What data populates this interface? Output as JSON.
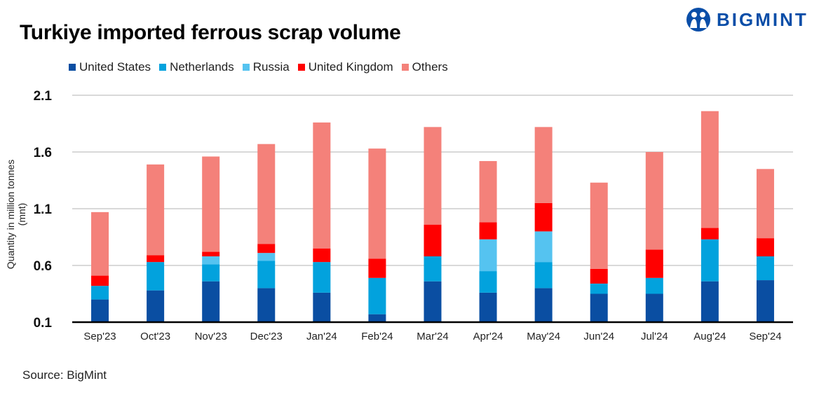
{
  "logo": {
    "text": "BIGMINT",
    "color": "#0a4ea8"
  },
  "source": "Source: BigMint",
  "chart_data": {
    "type": "bar",
    "stacked": true,
    "title": "Turkiye imported ferrous scrap volume",
    "xlabel": "",
    "ylabel": "Quantity in  million tonnes (mnt)",
    "ylim": [
      0.1,
      2.1
    ],
    "yticks": [
      "0.1",
      "0.6",
      "1.1",
      "1.6",
      "2.1"
    ],
    "grid": true,
    "legend": "top-left",
    "categories": [
      "Sep'23",
      "Oct'23",
      "Nov'23",
      "Dec'23",
      "Jan'24",
      "Feb'24",
      "Mar'24",
      "Apr'24",
      "May'24",
      "Jun'24",
      "Jul'24",
      "Aug'24",
      "Sep'24"
    ],
    "series": [
      {
        "name": "United States",
        "color": "#0a4ea2",
        "values": [
          0.3,
          0.38,
          0.46,
          0.4,
          0.36,
          0.17,
          0.46,
          0.36,
          0.4,
          0.35,
          0.35,
          0.46,
          0.47
        ]
      },
      {
        "name": "Netherlands",
        "color": "#02a2dd",
        "values": [
          0.12,
          0.25,
          0.15,
          0.24,
          0.27,
          0.32,
          0.22,
          0.19,
          0.23,
          0.09,
          0.14,
          0.37,
          0.21
        ]
      },
      {
        "name": "Russia",
        "color": "#55c3f0",
        "values": [
          0,
          0,
          0.07,
          0.07,
          0,
          0,
          0,
          0.28,
          0.27,
          0,
          0,
          0,
          0
        ]
      },
      {
        "name": "United Kingdom",
        "color": "#ff0000",
        "values": [
          0.09,
          0.06,
          0.04,
          0.08,
          0.12,
          0.17,
          0.28,
          0.15,
          0.25,
          0.13,
          0.25,
          0.1,
          0.16
        ]
      },
      {
        "name": "Others",
        "color": "#f4817a",
        "values": [
          0.56,
          0.8,
          0.84,
          0.88,
          1.11,
          0.97,
          0.86,
          0.54,
          0.67,
          0.76,
          0.86,
          1.03,
          0.61
        ]
      }
    ]
  }
}
